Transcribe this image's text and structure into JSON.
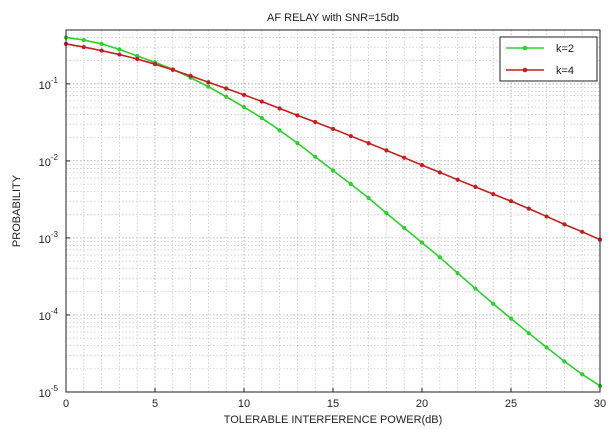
{
  "chart_data": {
    "type": "line",
    "title": "AF RELAY with SNR=15db",
    "xlabel": "TOLERABLE INTERFERENCE POWER(dB)",
    "ylabel": "PROBABILITY",
    "xlim": [
      0,
      30
    ],
    "ylim": [
      1e-05,
      0.5
    ],
    "yscale": "log",
    "grid": true,
    "legend_position": "top-right",
    "x_ticks": [
      "0",
      "5",
      "10",
      "15",
      "20",
      "25",
      "30"
    ],
    "y_ticks": [
      {
        "base": "10",
        "exp": "-1"
      },
      {
        "base": "10",
        "exp": "-2"
      },
      {
        "base": "10",
        "exp": "-3"
      },
      {
        "base": "10",
        "exp": "-4"
      },
      {
        "base": "10",
        "exp": "-5"
      }
    ],
    "x": [
      0,
      1,
      2,
      3,
      4,
      5,
      6,
      7,
      8,
      9,
      10,
      11,
      12,
      13,
      14,
      15,
      16,
      17,
      18,
      19,
      20,
      21,
      22,
      23,
      24,
      25,
      26,
      27,
      28,
      29,
      30
    ],
    "series": [
      {
        "name": "k=2",
        "color": "#2bd12b",
        "values": [
          0.4,
          0.37,
          0.33,
          0.28,
          0.23,
          0.19,
          0.155,
          0.12,
          0.092,
          0.068,
          0.05,
          0.036,
          0.025,
          0.017,
          0.0113,
          0.0075,
          0.005,
          0.0033,
          0.0021,
          0.00135,
          0.00087,
          0.00056,
          0.00035,
          0.00022,
          0.00014,
          9e-05,
          5.8e-05,
          3.8e-05,
          2.5e-05,
          1.7e-05,
          1.2e-05
        ]
      },
      {
        "name": "k=4",
        "color": "#c41e1e",
        "values": [
          0.33,
          0.3,
          0.27,
          0.24,
          0.21,
          0.18,
          0.152,
          0.127,
          0.105,
          0.087,
          0.072,
          0.059,
          0.048,
          0.039,
          0.032,
          0.026,
          0.021,
          0.017,
          0.0137,
          0.011,
          0.0088,
          0.0071,
          0.0057,
          0.0046,
          0.0037,
          0.003,
          0.0024,
          0.0019,
          0.0015,
          0.0012,
          0.00095
        ]
      }
    ]
  }
}
